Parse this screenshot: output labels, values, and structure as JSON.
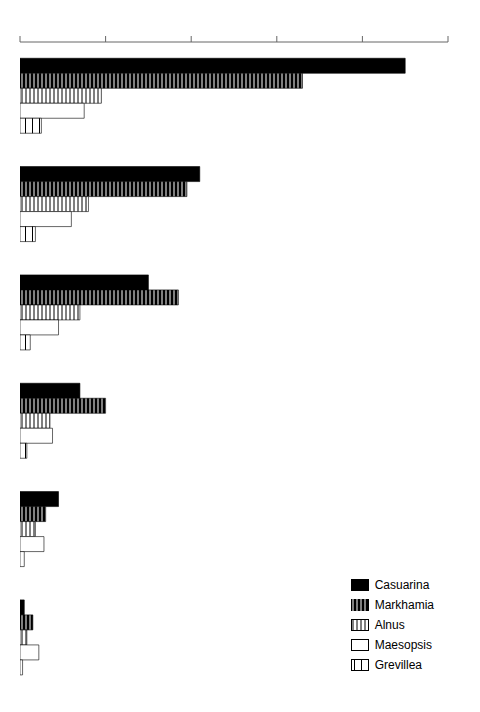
{
  "chart_data": {
    "type": "bar",
    "orientation": "horizontal",
    "categories": [
      null,
      null,
      null,
      null,
      null,
      null
    ],
    "series": [
      {
        "name": "Casuarina",
        "color": "black",
        "values": [
          450,
          210,
          150,
          70,
          45,
          5
        ]
      },
      {
        "name": "Markhamia",
        "color": "black",
        "values": [
          330,
          195,
          185,
          100,
          30,
          15
        ]
      },
      {
        "name": "Alnus",
        "color": "white",
        "values": [
          95,
          80,
          70,
          35,
          18,
          8
        ]
      },
      {
        "name": "Maesopsis",
        "color": "white",
        "values": [
          75,
          60,
          45,
          38,
          28,
          22
        ]
      },
      {
        "name": "Grevillea",
        "color": "white",
        "values": [
          25,
          18,
          12,
          8,
          5,
          3
        ]
      }
    ],
    "xlim": [
      0,
      500
    ],
    "xticks": [
      0,
      100,
      200,
      300,
      400,
      500
    ],
    "tick_labels": false,
    "legend": "lower right"
  }
}
